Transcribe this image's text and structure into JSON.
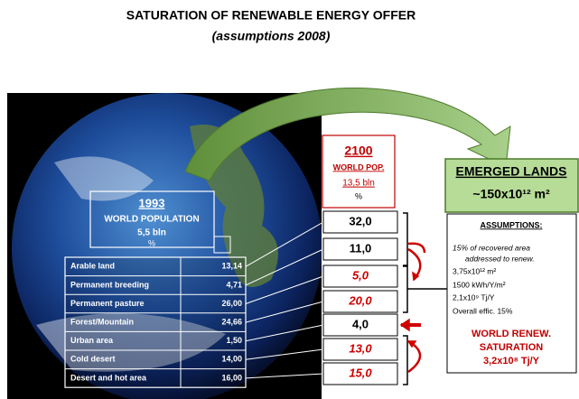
{
  "title": "SATURATION OF RENEWABLE ENERGY OFFER",
  "subtitle": "(assumptions 2008)",
  "box_1993": {
    "year": "1993",
    "label": "WORLD POPULATION",
    "population": "5,5 bln",
    "unit": "%"
  },
  "table": {
    "rows": [
      [
        "Arable land",
        "13,14"
      ],
      [
        "Permanent breeding",
        "4,71"
      ],
      [
        "Permanent pasture",
        "26,00"
      ],
      [
        "Forest/Mountain",
        "24,66"
      ],
      [
        "Urban area",
        "1,50"
      ],
      [
        "Cold desert",
        "14,00"
      ],
      [
        "Desert and hot area",
        "16,00"
      ]
    ]
  },
  "box_2100": {
    "year": "2100",
    "label": "WORLD POP.",
    "population": "13,5 bln",
    "unit": "%"
  },
  "column_2100": [
    "32,0",
    "11,0",
    "5,0",
    "20,0",
    "4,0",
    "13,0",
    "15,0"
  ],
  "emerged_lands": {
    "title": "EMERGED LANDS",
    "area": "~150x10¹² m²"
  },
  "assumptions": {
    "title": "ASSUMPTIONS:",
    "lines": [
      "15% of recovered area",
      "addressed to renew.",
      "3,75x10¹² m²",
      "1500 kWh/Y/m²",
      "2,1x10⁹ Tj/Y",
      "Overall effic. 15%"
    ],
    "result": [
      "WORLD RENEW.",
      "SATURATION",
      "3,2x10⁸ Tj/Y"
    ]
  }
}
